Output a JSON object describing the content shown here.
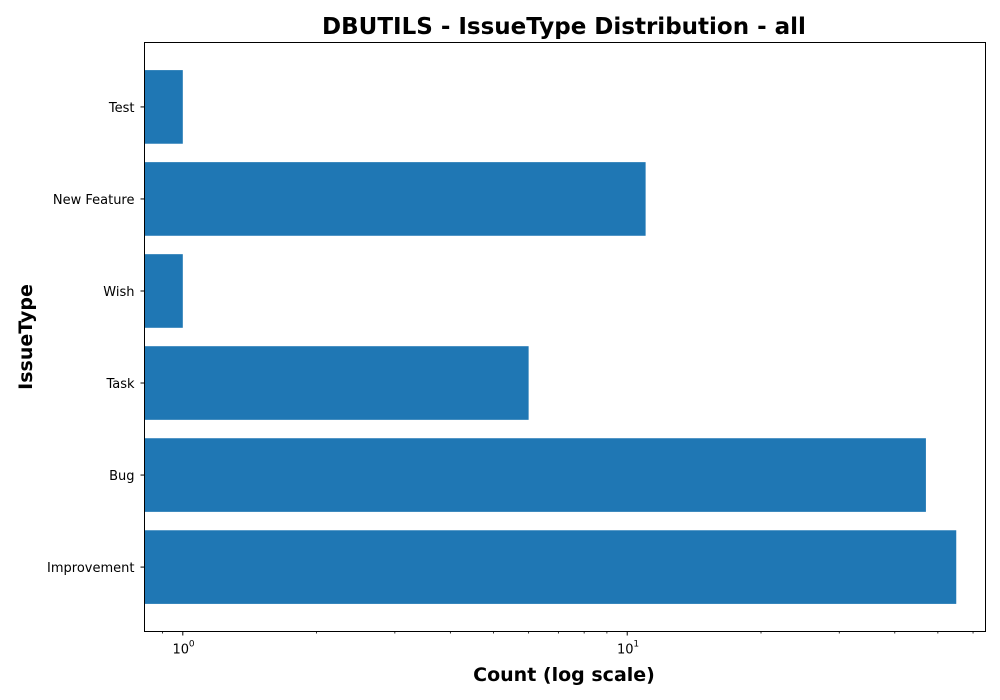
{
  "chart_data": {
    "type": "bar",
    "orientation": "horizontal",
    "title": "DBUTILS - IssueType Distribution - all",
    "xlabel": "Count (log scale)",
    "ylabel": "IssueType",
    "xscale": "log",
    "xlim": [
      0.82,
      64
    ],
    "x_ticks": [
      {
        "value": 1,
        "base": "10",
        "exp": "0"
      },
      {
        "value": 10,
        "base": "10",
        "exp": "1"
      }
    ],
    "categories": [
      "Improvement",
      "Bug",
      "Task",
      "Wish",
      "New Feature",
      "Test"
    ],
    "values": [
      55,
      47,
      6,
      1,
      11,
      1
    ],
    "bar_color": "#1f77b4",
    "grid": false
  }
}
